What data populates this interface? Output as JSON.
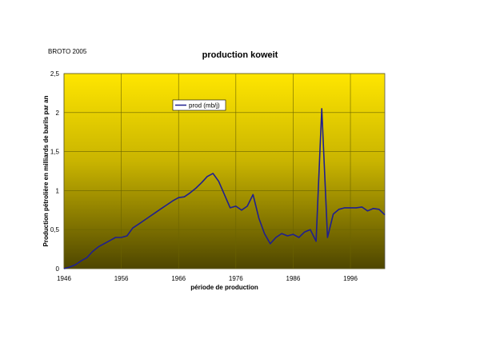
{
  "source_note": "BROTO 2005",
  "chart_data": {
    "type": "line",
    "title": "production koweit",
    "xlabel": "période de production",
    "ylabel": "Production pétrolière en milliards de barils par an",
    "xlim": [
      1946,
      2002
    ],
    "ylim": [
      0,
      2.5
    ],
    "x_ticks": [
      1946,
      1956,
      1966,
      1976,
      1986,
      1996
    ],
    "y_ticks": [
      {
        "value": 0,
        "label": "0"
      },
      {
        "value": 0.5,
        "label": "0,5"
      },
      {
        "value": 1,
        "label": "1"
      },
      {
        "value": 1.5,
        "label": "1,5"
      },
      {
        "value": 2,
        "label": "2"
      },
      {
        "value": 2.5,
        "label": "2,5"
      }
    ],
    "grid": true,
    "legend_position": "top-center",
    "colors": {
      "line": "#1f1f8f",
      "plot_top": "#ffe600",
      "plot_bottom": "#4e4600"
    },
    "series": [
      {
        "name": "prod (mb/j)",
        "x": [
          1946,
          1947,
          1948,
          1949,
          1950,
          1951,
          1952,
          1953,
          1954,
          1955,
          1956,
          1957,
          1958,
          1959,
          1960,
          1961,
          1962,
          1963,
          1964,
          1965,
          1966,
          1967,
          1968,
          1969,
          1970,
          1971,
          1972,
          1973,
          1974,
          1975,
          1976,
          1977,
          1978,
          1979,
          1980,
          1981,
          1982,
          1983,
          1984,
          1985,
          1986,
          1987,
          1988,
          1989,
          1990,
          1991,
          1992,
          1993,
          1994,
          1995,
          1996,
          1997,
          1998,
          1999,
          2000,
          2001,
          2002
        ],
        "values": [
          0.0,
          0.02,
          0.05,
          0.1,
          0.14,
          0.22,
          0.28,
          0.32,
          0.36,
          0.4,
          0.4,
          0.42,
          0.52,
          0.57,
          0.62,
          0.67,
          0.72,
          0.77,
          0.82,
          0.87,
          0.91,
          0.92,
          0.97,
          1.03,
          1.1,
          1.18,
          1.22,
          1.12,
          0.95,
          0.78,
          0.8,
          0.75,
          0.8,
          0.95,
          0.65,
          0.45,
          0.32,
          0.4,
          0.45,
          0.42,
          0.44,
          0.4,
          0.47,
          0.5,
          0.35,
          2.05,
          0.4,
          0.7,
          0.76,
          0.78,
          0.78,
          0.78,
          0.79,
          0.74,
          0.77,
          0.76,
          0.69
        ]
      }
    ]
  }
}
